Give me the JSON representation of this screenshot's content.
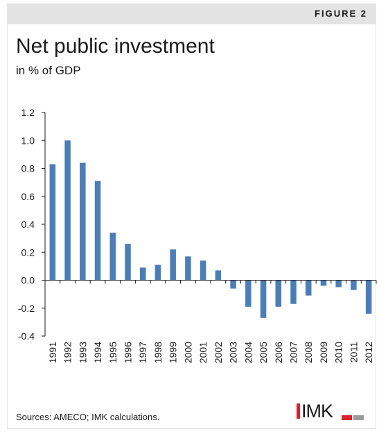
{
  "header": {
    "figure_label": "FIGURE 2"
  },
  "chart_data": {
    "type": "bar",
    "title": "Net public investment",
    "subtitle": "in % of GDP",
    "xlabel": "",
    "ylabel": "",
    "ylim": [
      -0.4,
      1.2
    ],
    "yticks": [
      1.2,
      1.0,
      0.8,
      0.6,
      0.4,
      0.2,
      0.0,
      -0.2,
      -0.4
    ],
    "ytick_labels": [
      "1.2",
      "1.0",
      "0.8",
      "0.6",
      "0.4",
      "0.2",
      "0.0",
      "-0.2",
      "-0.4"
    ],
    "grid": false,
    "legend": "none",
    "bar_color": "#4a7ebb",
    "categories": [
      "1991",
      "1992",
      "1993",
      "1994",
      "1995",
      "1996",
      "1997",
      "1998",
      "1999",
      "2000",
      "2001",
      "2002",
      "2003",
      "2004",
      "2005",
      "2006",
      "2007",
      "2008",
      "2009",
      "2010",
      "2011",
      "2012"
    ],
    "values": [
      0.83,
      1.0,
      0.84,
      0.71,
      0.34,
      0.26,
      0.09,
      0.11,
      0.22,
      0.17,
      0.14,
      0.07,
      -0.06,
      -0.19,
      -0.27,
      -0.19,
      -0.17,
      -0.11,
      -0.04,
      -0.05,
      -0.07,
      -0.24
    ]
  },
  "footer": {
    "source": "Sources: AMECO; IMK calculations.",
    "logo_text": "IMK"
  }
}
